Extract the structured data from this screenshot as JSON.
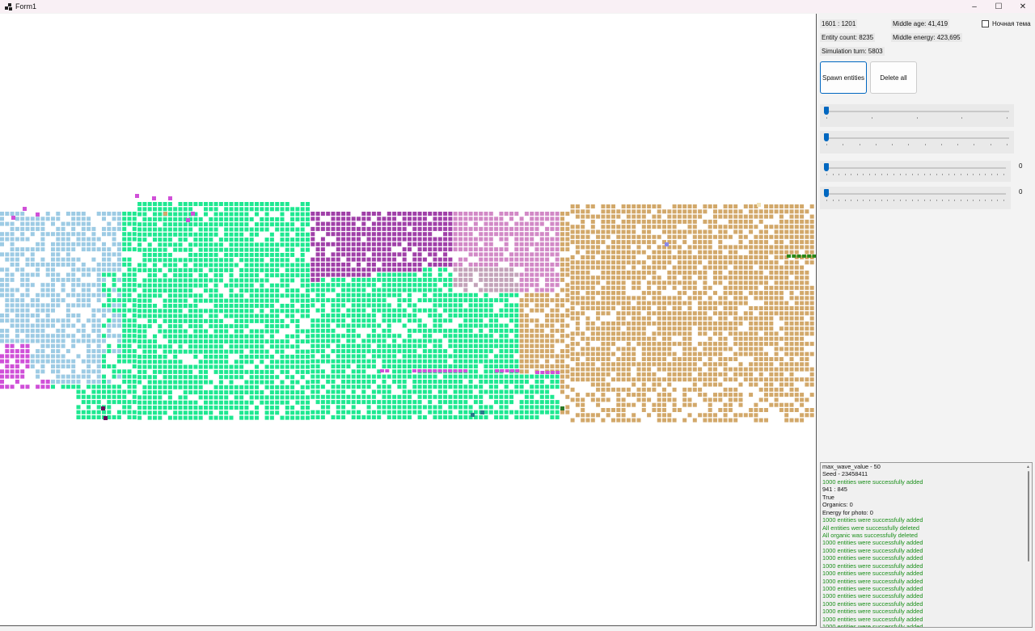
{
  "window": {
    "title": "Form1",
    "minimize": "–",
    "maximize": "☐",
    "close": "✕"
  },
  "stats": {
    "resolution": "1601 : 1201",
    "entity_count": "Entity count: 8235",
    "simulation_turn": "Simulation turn: 5803",
    "middle_age": "Middle age: 41,419",
    "middle_energy": "Middle energy: 423,695"
  },
  "night_theme": {
    "label": "Ночная тема",
    "checked": false
  },
  "buttons": {
    "spawn": "Spawn entities",
    "delete_all": "Delete all"
  },
  "sliders": [
    {
      "value": 0,
      "label": ""
    },
    {
      "value": 0,
      "label": ""
    },
    {
      "value": 0,
      "label": "0"
    },
    {
      "value": 0,
      "label": "0"
    }
  ],
  "log": [
    {
      "text": "max_wave_value -  50",
      "ok": false
    },
    {
      "text": "Seed -  23458411",
      "ok": false
    },
    {
      "text": "1000 entities were successfully added",
      "ok": true
    },
    {
      "text": "941 : 845",
      "ok": false
    },
    {
      "text": "True",
      "ok": false
    },
    {
      "text": "Organics: 0",
      "ok": false
    },
    {
      "text": "Energy for photo: 0",
      "ok": false
    },
    {
      "text": "1000 entities were successfully added",
      "ok": true
    },
    {
      "text": "All entities were successfully deleted",
      "ok": true
    },
    {
      "text": "All organic was successfully deleted",
      "ok": true
    },
    {
      "text": "1000 entities were successfully added",
      "ok": true
    },
    {
      "text": "1000 entities were successfully added",
      "ok": true
    },
    {
      "text": "1000 entities were successfully added",
      "ok": true
    },
    {
      "text": "1000 entities were successfully added",
      "ok": true
    },
    {
      "text": "1000 entities were successfully added",
      "ok": true
    },
    {
      "text": "1000 entities were successfully added",
      "ok": true
    },
    {
      "text": "1000 entities were successfully added",
      "ok": true
    },
    {
      "text": "1000 entities were successfully added",
      "ok": true
    },
    {
      "text": "1000 entities were successfully added",
      "ok": true
    },
    {
      "text": "1000 entities were successfully added",
      "ok": true
    },
    {
      "text": "1000 entities were successfully added",
      "ok": true
    },
    {
      "text": "1000 entities were successfully added",
      "ok": true
    }
  ],
  "colors": {
    "light_blue": "#9dcbe4",
    "green": "#1ee891",
    "purple": "#a040a8",
    "pink": "#d289c6",
    "tan": "#d2a86a",
    "magenta": "#d050d8",
    "gray_pink": "#c3a3b9"
  }
}
